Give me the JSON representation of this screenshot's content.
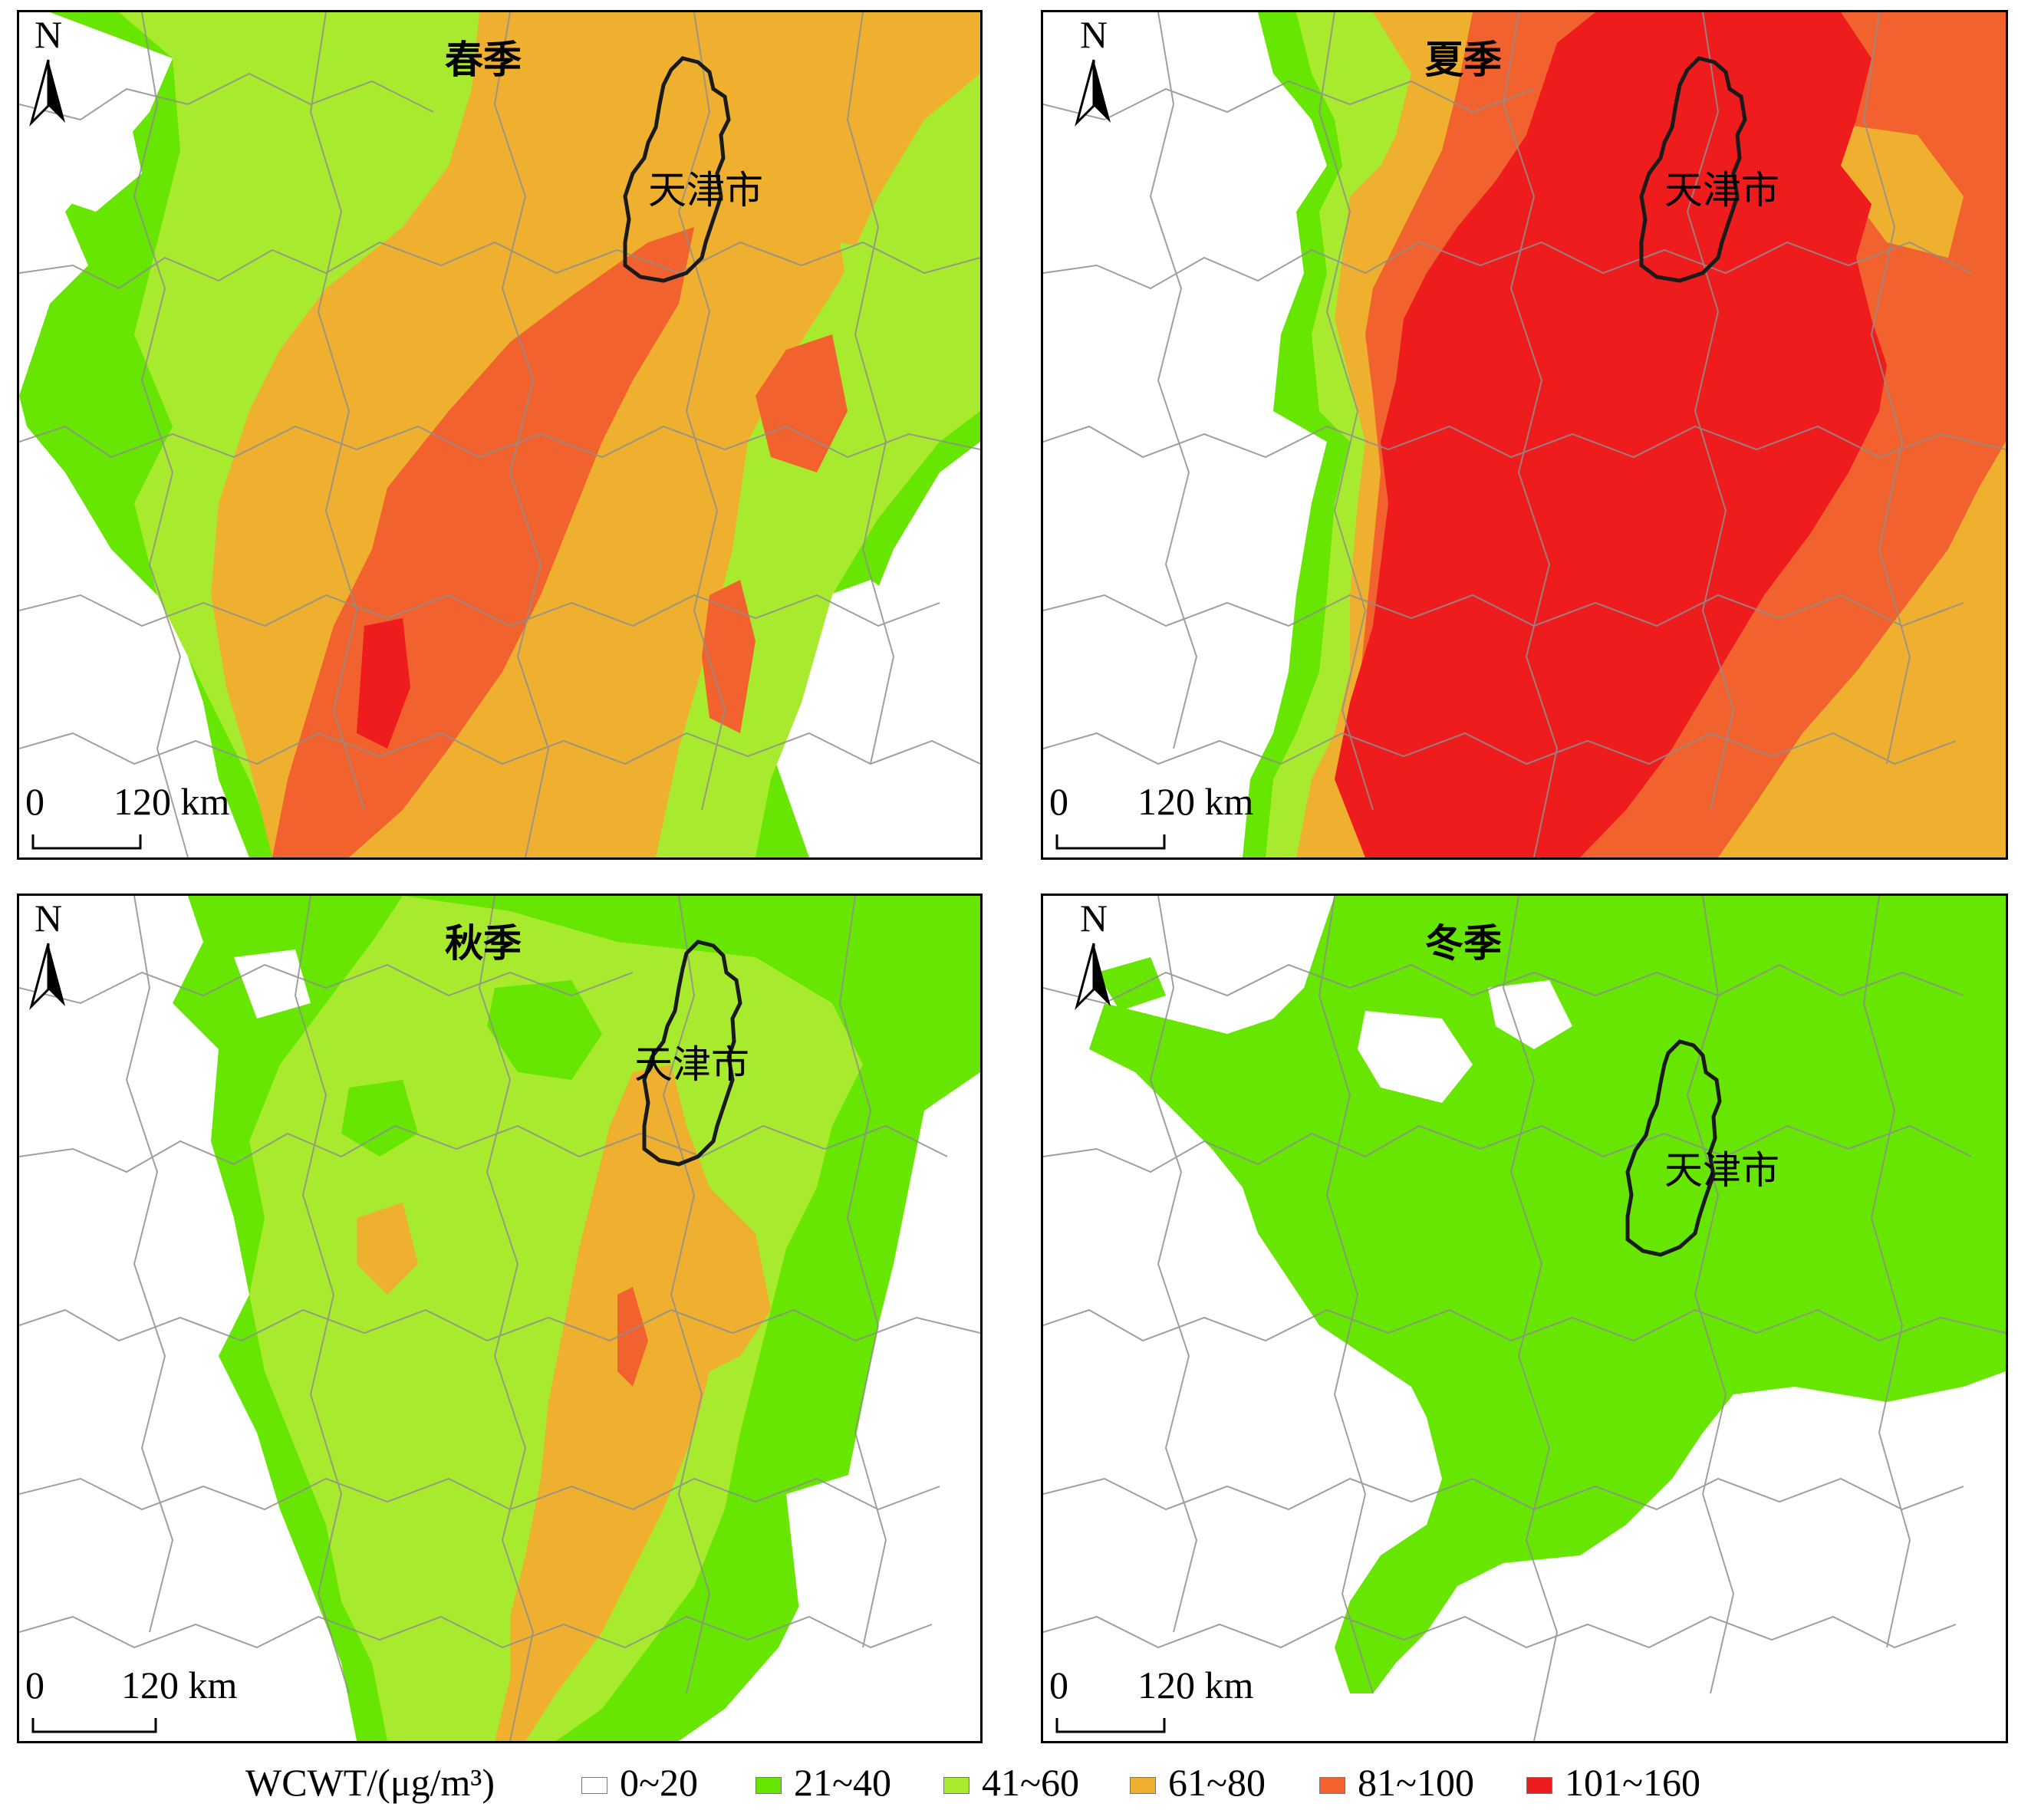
{
  "panels": [
    {
      "title": "春季",
      "city_label": "天津市",
      "north_label": "N",
      "scale_zero": "0",
      "scale_label": "120 km"
    },
    {
      "title": "夏季",
      "city_label": "天津市",
      "north_label": "N",
      "scale_zero": "0",
      "scale_label": "120 km"
    },
    {
      "title": "秋季",
      "city_label": "天津市",
      "north_label": "N",
      "scale_zero": "0",
      "scale_label": "120 km"
    },
    {
      "title": "冬季",
      "city_label": "天津市",
      "north_label": "N",
      "scale_zero": "0",
      "scale_label": "120 km"
    }
  ],
  "legend": {
    "title": "WCWT/(μg/m³)",
    "classes": [
      {
        "label": "0~20",
        "color": "#ffffff"
      },
      {
        "label": "21~40",
        "color": "#66e600"
      },
      {
        "label": "41~60",
        "color": "#a8eb2e"
      },
      {
        "label": "61~80",
        "color": "#eeb02e"
      },
      {
        "label": "81~100",
        "color": "#f2622e"
      },
      {
        "label": "101~160",
        "color": "#ee1c1c"
      }
    ]
  }
}
